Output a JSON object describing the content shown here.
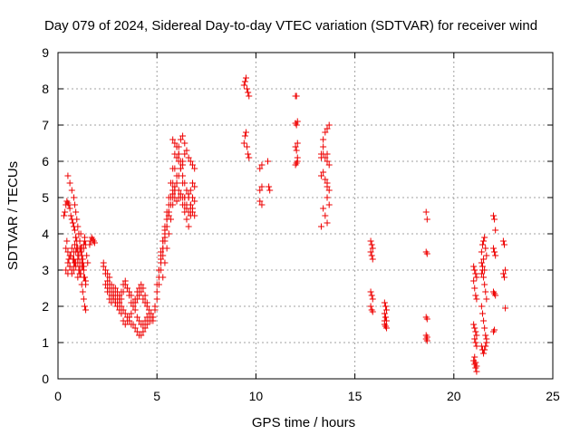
{
  "chart_data": {
    "type": "scatter",
    "title": "Day 079 of 2024, Sidereal Day-to-day VTEC variation (SDTVAR) for receiver wind",
    "xlabel": "GPS time / hours",
    "ylabel": "SDTVAR / TECUs",
    "xlim": [
      0,
      25
    ],
    "ylim": [
      0,
      9
    ],
    "xticks": [
      0,
      5,
      10,
      15,
      20,
      25
    ],
    "yticks": [
      0,
      1,
      2,
      3,
      4,
      5,
      6,
      7,
      8,
      9
    ],
    "grid": true,
    "marker": "+",
    "color": "#ee0000",
    "series": [
      {
        "name": "SDTVAR",
        "x": [
          0.3,
          0.35,
          0.4,
          0.45,
          0.5,
          0.55,
          0.6,
          0.65,
          0.7,
          0.75,
          0.8,
          0.85,
          0.9,
          0.95,
          1.0,
          1.05,
          1.1,
          1.15,
          1.2,
          1.25,
          1.3,
          1.35,
          1.4,
          0.4,
          0.45,
          0.5,
          0.55,
          0.6,
          0.65,
          0.7,
          0.75,
          0.8,
          0.85,
          0.9,
          0.95,
          1.0,
          1.05,
          1.1,
          1.15,
          1.2,
          1.25,
          1.3,
          1.35,
          1.4,
          1.45,
          1.5,
          0.4,
          0.5,
          0.6,
          0.7,
          0.8,
          0.9,
          1.0,
          1.1,
          1.2,
          1.3,
          1.4,
          0.5,
          0.6,
          0.7,
          0.8,
          0.9,
          1.0,
          1.1,
          1.2,
          1.3,
          0.5,
          0.6,
          0.7,
          0.8,
          0.85,
          0.9,
          0.95,
          1.0,
          1.05,
          1.1,
          1.15,
          1.2,
          1.25,
          1.3,
          1.35,
          1.4,
          0.8,
          0.85,
          0.9,
          0.95,
          1.0,
          1.05,
          1.1,
          1.15,
          1.2,
          1.25,
          1.3,
          1.35,
          1.6,
          1.65,
          1.7,
          1.75,
          1.8,
          1.85,
          2.3,
          2.4,
          2.5,
          2.6,
          2.7,
          2.8,
          2.9,
          3.0,
          3.1,
          3.2,
          3.3,
          3.4,
          3.5,
          3.6,
          3.7,
          3.8,
          3.9,
          4.0,
          4.1,
          4.2,
          4.3,
          4.4,
          4.5,
          4.6,
          4.7,
          4.8,
          2.3,
          2.4,
          2.5,
          2.6,
          2.7,
          2.8,
          2.9,
          3.0,
          3.1,
          3.2,
          3.3,
          3.4,
          3.5,
          3.6,
          3.7,
          3.8,
          3.9,
          4.0,
          4.1,
          4.2,
          4.3,
          4.4,
          4.5,
          4.6,
          4.7,
          4.8,
          2.4,
          2.5,
          2.6,
          2.7,
          2.8,
          2.9,
          3.0,
          3.1,
          3.2,
          3.3,
          3.4,
          3.5,
          3.6,
          3.7,
          3.8,
          3.9,
          4.0,
          4.1,
          4.2,
          4.3,
          4.4,
          4.5,
          4.6,
          2.5,
          2.6,
          2.7,
          2.8,
          2.9,
          3.0,
          3.1,
          3.2,
          3.3,
          3.4,
          3.5,
          3.6,
          3.7,
          3.8,
          3.9,
          4.0,
          4.1,
          4.2,
          4.3,
          4.4,
          4.5,
          4.8,
          4.9,
          5.0,
          5.1,
          5.2,
          5.3,
          5.4,
          5.5,
          5.6,
          5.7,
          5.8,
          5.9,
          6.0,
          6.1,
          6.2,
          6.3,
          6.4,
          6.5,
          6.6,
          6.7,
          6.8,
          6.9,
          4.9,
          5.0,
          5.1,
          5.2,
          5.3,
          5.4,
          5.5,
          5.6,
          5.7,
          5.8,
          5.9,
          6.0,
          6.1,
          6.2,
          6.3,
          6.4,
          6.5,
          6.6,
          6.7,
          6.8,
          6.9,
          5.0,
          5.1,
          5.2,
          5.3,
          5.4,
          5.5,
          5.6,
          5.7,
          5.8,
          5.9,
          6.0,
          6.1,
          6.2,
          6.3,
          6.4,
          6.5,
          6.6,
          6.7,
          6.8,
          5.1,
          5.2,
          5.3,
          5.4,
          5.5,
          5.6,
          5.7,
          5.8,
          5.9,
          6.0,
          6.1,
          6.2,
          6.3,
          6.4,
          6.5,
          6.6,
          6.7,
          6.8,
          6.9,
          5.3,
          5.4,
          5.5,
          5.6,
          5.7,
          5.8,
          5.9,
          6.0,
          6.1,
          6.2,
          6.3,
          6.4,
          6.5,
          6.6,
          6.7,
          6.8,
          5.2,
          5.3,
          5.4,
          5.5,
          5.6,
          5.7,
          5.8,
          5.9,
          6.0,
          6.1,
          6.2,
          6.3,
          6.4,
          5.8,
          5.9,
          6.0,
          6.1,
          6.2,
          6.3,
          6.4,
          6.5,
          6.6,
          6.7,
          6.8,
          6.9,
          9.4,
          9.45,
          9.5,
          9.55,
          9.6,
          9.65,
          9.4,
          9.45,
          9.5,
          9.55,
          9.6,
          9.65,
          10.2,
          10.3,
          10.2,
          10.3,
          10.2,
          10.3,
          10.6,
          10.65,
          10.7,
          12.0,
          12.05,
          12.1,
          12.0,
          12.05,
          12.1,
          12.0,
          12.05,
          12.1,
          12.0,
          12.05,
          12.1,
          13.3,
          13.4,
          13.5,
          13.6,
          13.3,
          13.4,
          13.5,
          13.6,
          13.4,
          13.5,
          13.6,
          13.3,
          13.4,
          13.5,
          13.6,
          13.7,
          13.6,
          13.7,
          13.6,
          13.7,
          13.3,
          13.4,
          13.6,
          13.7,
          15.8,
          15.85,
          15.9,
          15.8,
          15.85,
          15.9,
          15.8,
          15.85,
          15.9,
          15.8,
          15.85,
          15.9,
          16.5,
          16.55,
          16.6,
          16.5,
          16.55,
          16.6,
          16.5,
          16.55,
          16.6,
          16.5,
          16.55,
          18.6,
          18.65,
          18.6,
          18.65,
          18.6,
          18.65,
          18.6,
          18.65,
          18.6,
          18.65,
          21.0,
          21.05,
          21.1,
          21.15,
          21.0,
          21.05,
          21.1,
          21.15,
          21.0,
          21.05,
          21.1,
          21.15,
          21.0,
          21.05,
          21.1,
          21.15,
          21.05,
          21.1,
          21.15,
          21.05,
          21.1,
          21.15,
          21.4,
          21.45,
          21.5,
          21.55,
          21.6,
          21.65,
          21.4,
          21.45,
          21.5,
          21.55,
          21.6,
          21.65,
          21.4,
          21.45,
          21.5,
          21.55,
          21.6,
          21.65,
          21.4,
          21.45,
          21.5,
          21.55,
          21.6,
          21.65,
          21.4,
          21.45,
          21.5,
          21.55,
          22.0,
          22.05,
          22.1,
          22.0,
          22.05,
          22.1,
          22.0,
          22.05,
          22.1,
          22.0,
          22.05,
          22.5,
          22.55,
          22.6,
          22.5,
          22.55,
          22.6
        ],
        "y": [
          4.5,
          4.6,
          4.8,
          4.9,
          4.85,
          4.8,
          4.7,
          4.5,
          4.4,
          4.3,
          4.2,
          4.1,
          3.9,
          3.8,
          3.6,
          3.4,
          3.1,
          2.9,
          2.6,
          2.4,
          2.2,
          2.0,
          1.9,
          3.6,
          3.8,
          3.5,
          3.3,
          3.1,
          3.4,
          3.6,
          3.3,
          3.1,
          3.2,
          3.5,
          3.6,
          3.3,
          3.0,
          3.2,
          3.5,
          3.4,
          3.1,
          3.6,
          3.8,
          3.7,
          3.4,
          3.2,
          3.0,
          2.9,
          3.1,
          2.9,
          3.0,
          3.2,
          2.8,
          2.9,
          3.1,
          2.8,
          2.7,
          3.2,
          3.4,
          3.0,
          3.3,
          3.1,
          3.5,
          3.6,
          3.3,
          3.1,
          5.6,
          5.4,
          5.2,
          5.0,
          4.8,
          4.6,
          4.4,
          4.2,
          4.0,
          3.8,
          3.6,
          3.4,
          3.2,
          3.0,
          2.8,
          2.6,
          3.5,
          3.7,
          3.9,
          3.6,
          3.2,
          3.4,
          3.8,
          4.0,
          3.6,
          3.3,
          3.7,
          3.9,
          3.7,
          3.8,
          3.9,
          3.85,
          3.8,
          3.75,
          3.2,
          3.0,
          2.9,
          2.8,
          2.6,
          2.5,
          2.3,
          2.2,
          2.1,
          2.0,
          1.9,
          1.8,
          1.7,
          1.6,
          1.5,
          1.5,
          1.4,
          1.3,
          1.2,
          1.2,
          1.3,
          1.4,
          1.5,
          1.6,
          1.6,
          1.6,
          3.1,
          2.9,
          2.7,
          2.6,
          2.4,
          2.3,
          2.1,
          2.0,
          1.9,
          1.8,
          1.6,
          1.5,
          1.6,
          1.7,
          1.8,
          2.0,
          2.1,
          2.2,
          2.3,
          2.4,
          2.2,
          2.1,
          2.0,
          1.9,
          1.8,
          1.7,
          2.6,
          2.5,
          2.4,
          2.3,
          2.2,
          2.1,
          2.0,
          2.2,
          2.4,
          2.6,
          2.7,
          2.5,
          2.4,
          2.3,
          2.1,
          1.9,
          1.7,
          1.6,
          1.5,
          1.5,
          1.6,
          1.7,
          1.8,
          2.4,
          2.2,
          2.1,
          2.3,
          2.5,
          2.4,
          2.3,
          2.2,
          2.4,
          2.6,
          2.5,
          2.3,
          2.1,
          2.0,
          2.2,
          2.4,
          2.5,
          2.6,
          2.5,
          2.3,
          2.1,
          1.7,
          1.9,
          2.2,
          2.6,
          3.0,
          3.4,
          3.8,
          4.2,
          4.6,
          5.0,
          5.4,
          5.8,
          6.1,
          6.4,
          6.6,
          6.7,
          6.5,
          6.3,
          6.1,
          6.0,
          5.9,
          5.8,
          2.0,
          2.4,
          2.8,
          3.2,
          3.6,
          4.0,
          4.4,
          4.8,
          5.0,
          5.2,
          5.3,
          5.4,
          5.2,
          5.0,
          4.8,
          4.6,
          4.4,
          4.2,
          4.6,
          5.0,
          5.3,
          2.6,
          3.0,
          3.4,
          3.8,
          4.2,
          4.6,
          5.0,
          5.4,
          5.8,
          6.2,
          6.4,
          6.2,
          5.8,
          5.4,
          5.0,
          4.8,
          5.0,
          5.2,
          5.4,
          3.0,
          3.3,
          3.6,
          3.9,
          4.2,
          4.5,
          4.8,
          5.1,
          5.0,
          4.9,
          5.0,
          5.1,
          5.0,
          4.8,
          4.7,
          4.6,
          4.5,
          4.7,
          4.9,
          2.8,
          3.2,
          3.6,
          4.0,
          4.4,
          4.8,
          5.2,
          5.6,
          6.0,
          5.8,
          5.6,
          5.4,
          5.2,
          5.0,
          4.8,
          4.6,
          3.5,
          3.8,
          4.1,
          4.4,
          4.6,
          4.8,
          5.0,
          5.2,
          5.4,
          5.6,
          5.8,
          6.0,
          6.2,
          6.6,
          6.5,
          6.4,
          6.2,
          6.0,
          5.9,
          5.0,
          5.2,
          5.1,
          4.8,
          4.6,
          4.5,
          8.1,
          8.2,
          8.3,
          8.0,
          7.9,
          7.8,
          6.5,
          6.7,
          6.8,
          6.4,
          6.2,
          6.1,
          5.8,
          5.9,
          5.2,
          5.3,
          4.9,
          4.8,
          6.0,
          5.3,
          5.2,
          7.8,
          7.8,
          7.1,
          7.05,
          7.0,
          6.5,
          6.4,
          6.3,
          6.0,
          5.9,
          5.95,
          6.1,
          6.1,
          6.2,
          6.1,
          6.2,
          5.6,
          5.7,
          5.5,
          5.4,
          4.7,
          4.5,
          4.3,
          4.2,
          6.6,
          6.8,
          6.9,
          7.0,
          5.3,
          5.2,
          5.0,
          4.8,
          6.2,
          6.4,
          6.0,
          5.9,
          3.8,
          3.7,
          3.6,
          3.5,
          3.4,
          3.3,
          2.4,
          2.3,
          2.2,
          2.0,
          1.9,
          1.85,
          2.1,
          2.0,
          1.9,
          1.8,
          1.7,
          1.6,
          1.5,
          1.45,
          1.4,
          1.6,
          1.7,
          4.6,
          4.4,
          3.5,
          3.45,
          1.7,
          1.65,
          1.2,
          1.15,
          1.1,
          1.05,
          3.1,
          3.0,
          2.9,
          2.8,
          2.7,
          2.5,
          2.3,
          2.2,
          1.5,
          1.4,
          1.3,
          1.2,
          0.5,
          0.4,
          0.3,
          0.2,
          0.6,
          0.45,
          0.35,
          1.1,
          1.0,
          0.9,
          3.5,
          3.7,
          3.8,
          3.9,
          3.6,
          3.4,
          3.2,
          3.0,
          2.8,
          2.6,
          2.4,
          2.2,
          2.0,
          1.8,
          1.6,
          1.4,
          1.2,
          1.1,
          0.9,
          0.8,
          0.7,
          0.8,
          0.9,
          1.0,
          2.9,
          3.1,
          3.3,
          3.0,
          4.5,
          4.4,
          4.1,
          3.6,
          3.5,
          3.4,
          2.4,
          2.35,
          2.3,
          1.3,
          1.35,
          3.8,
          3.7,
          3.0,
          2.9,
          2.8,
          1.95
        ]
      }
    ]
  }
}
